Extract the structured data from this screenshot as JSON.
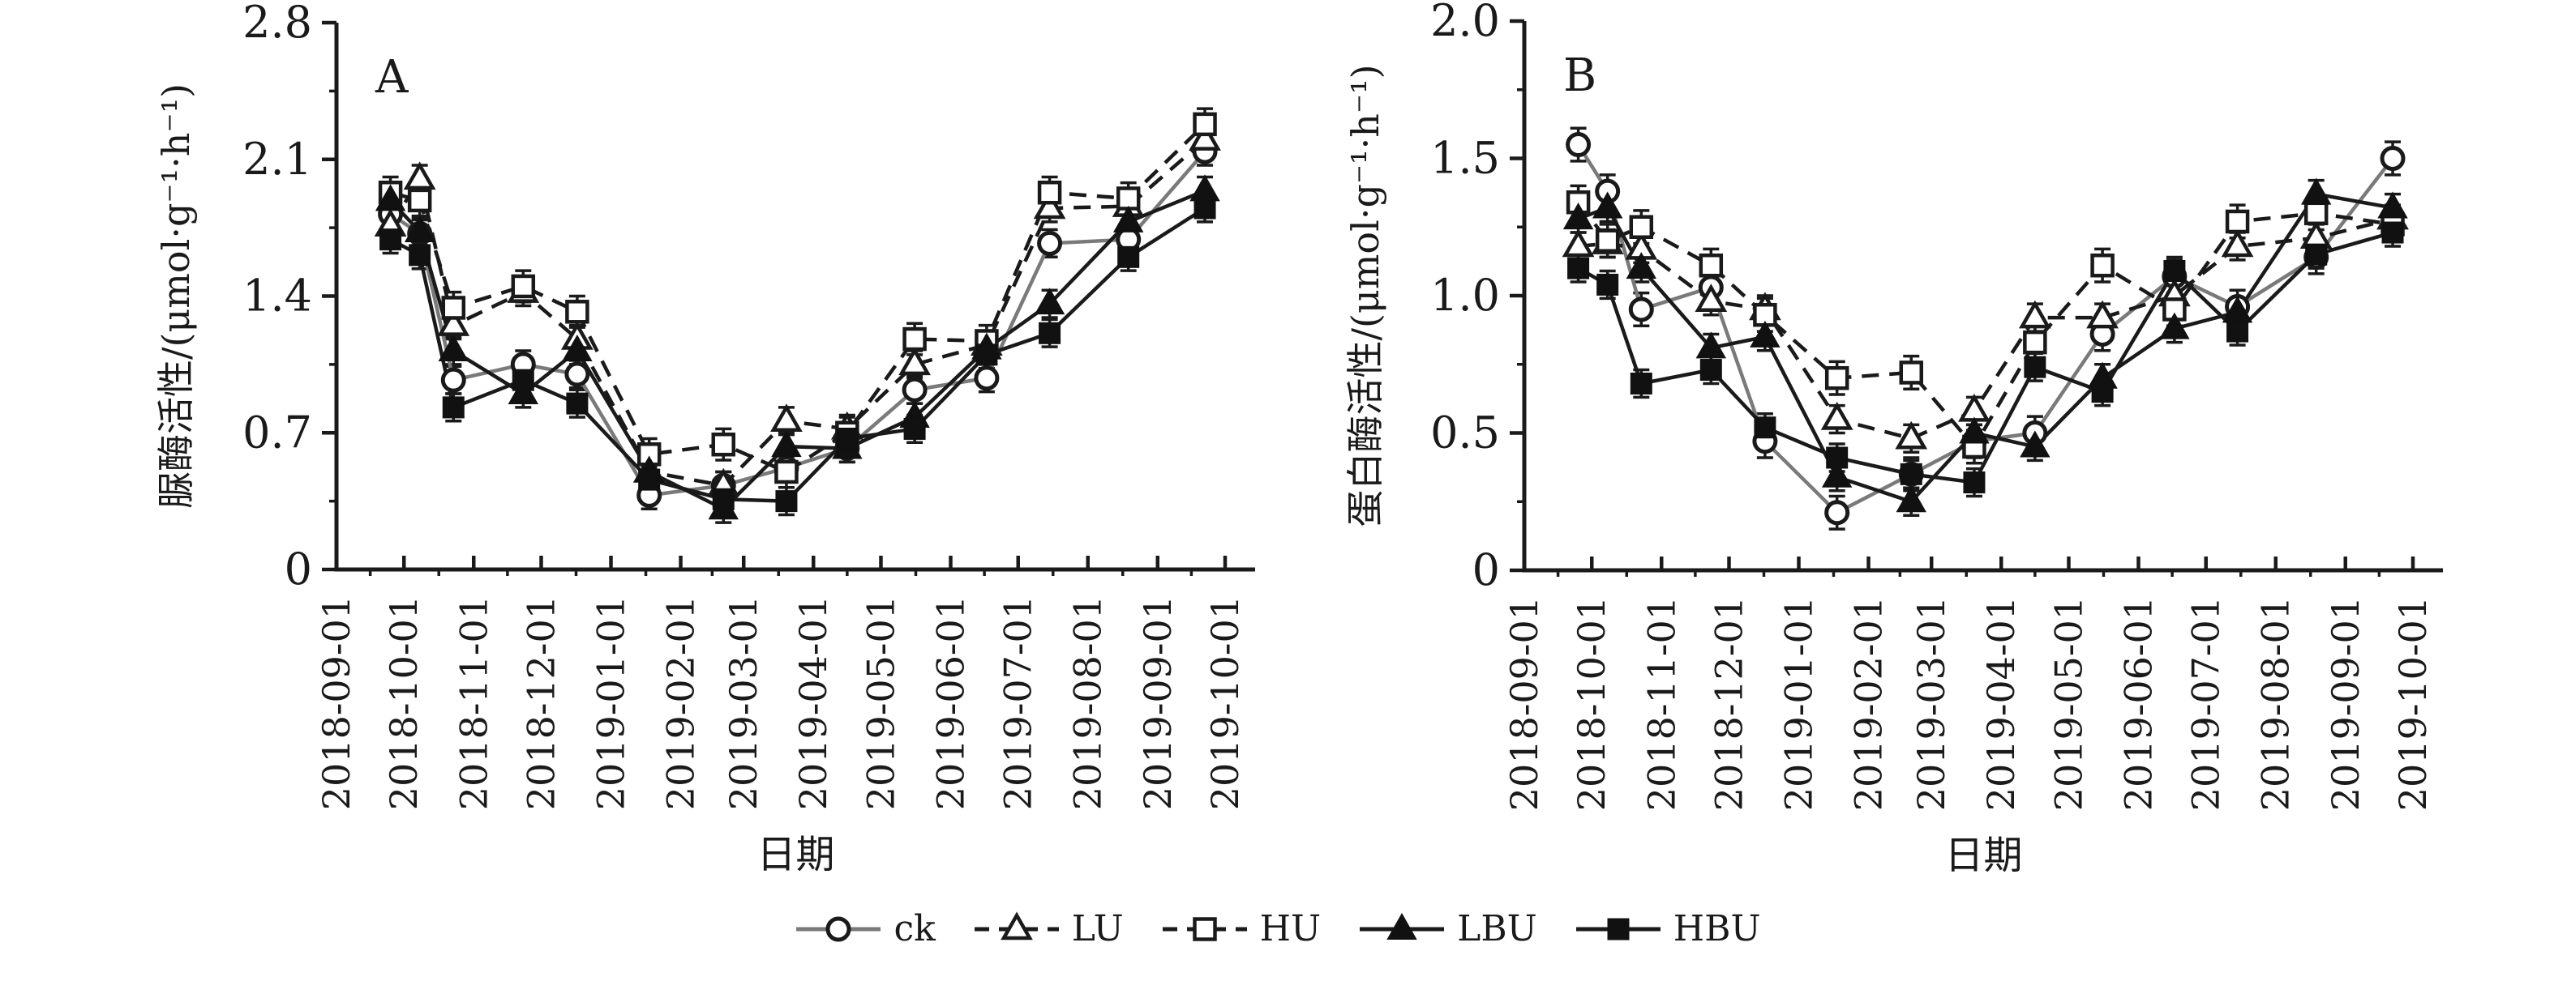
{
  "figure": {
    "background": "#ffffff",
    "axis_color": "#1a1a1a",
    "open_marker_fill": "#ffffff",
    "filled_marker_fill": "#111111"
  },
  "legend": {
    "items": [
      {
        "name": "ck",
        "label": "ck"
      },
      {
        "name": "LU",
        "label": "LU"
      },
      {
        "name": "HU",
        "label": "HU"
      },
      {
        "name": "LBU",
        "label": "LBU"
      },
      {
        "name": "HBU",
        "label": "HBU"
      }
    ]
  },
  "chart_data": [
    {
      "type": "line",
      "panel_label": "A",
      "ylabel": "脲酶活性/(μmol·g⁻¹·h⁻¹)",
      "xlabel": "日期",
      "ylim": [
        0,
        2.8
      ],
      "yticks": [
        {
          "value": 0,
          "label": "0"
        },
        {
          "value": 0.7,
          "label": "0.7"
        },
        {
          "value": 1.4,
          "label": "1.4"
        },
        {
          "value": 2.1,
          "label": "2.1"
        },
        {
          "value": 2.8,
          "label": "2.8"
        }
      ],
      "y_minor_ticks": [
        0.35,
        1.05,
        1.75,
        2.45
      ],
      "x_tick_labels": [
        "2018-09-01",
        "2018-10-01",
        "2018-11-01",
        "2018-12-01",
        "2019-01-01",
        "2019-02-01",
        "2019-03-01",
        "2019-04-01",
        "2019-05-01",
        "2019-06-01",
        "2019-07-01",
        "2019-08-01",
        "2019-09-01",
        "2019-10-01"
      ],
      "x_tick_days": [
        0,
        30,
        61,
        91,
        122,
        153,
        181,
        212,
        242,
        273,
        303,
        334,
        365,
        395
      ],
      "sample_days": [
        24,
        37,
        52,
        83,
        107,
        139,
        172,
        200,
        227,
        257,
        289,
        317,
        352,
        386
      ],
      "sample_dates_estimated": [
        "2018-09-25",
        "2018-10-08",
        "2018-10-23",
        "2018-11-23",
        "2018-12-17",
        "2019-01-18",
        "2019-02-21",
        "2019-03-21",
        "2019-04-16",
        "2019-05-16",
        "2019-06-17",
        "2019-07-15",
        "2019-08-22",
        "2019-09-22"
      ],
      "series": [
        {
          "name": "ck",
          "color": "#7a7a7a",
          "line": "solid",
          "marker": "circle-open",
          "err": 0.07,
          "values": [
            1.82,
            1.72,
            0.97,
            1.05,
            1.0,
            0.38,
            0.43,
            0.52,
            0.62,
            0.92,
            0.98,
            1.67,
            1.69,
            2.14
          ]
        },
        {
          "name": "LU",
          "color": "#1a1a1a",
          "line": "dashed",
          "marker": "triangle-open",
          "err": 0.07,
          "values": [
            1.76,
            2.0,
            1.25,
            1.42,
            1.18,
            0.5,
            0.43,
            0.76,
            0.72,
            1.05,
            1.15,
            1.85,
            1.86,
            2.2
          ]
        },
        {
          "name": "HU",
          "color": "#1a1a1a",
          "line": "dashed",
          "marker": "square-open",
          "err": 0.08,
          "values": [
            1.93,
            1.89,
            1.34,
            1.45,
            1.32,
            0.59,
            0.64,
            0.5,
            0.7,
            1.18,
            1.17,
            1.93,
            1.9,
            2.28
          ]
        },
        {
          "name": "LBU",
          "color": "#1a1a1a",
          "line": "solid",
          "marker": "triangle-filled",
          "err": 0.07,
          "values": [
            1.89,
            1.73,
            1.12,
            0.9,
            1.12,
            0.5,
            0.31,
            0.63,
            0.62,
            0.78,
            1.13,
            1.36,
            1.78,
            1.94
          ]
        },
        {
          "name": "HBU",
          "color": "#1a1a1a",
          "line": "solid",
          "marker": "square-filled",
          "err": 0.07,
          "values": [
            1.69,
            1.61,
            0.83,
            0.97,
            0.85,
            0.46,
            0.36,
            0.35,
            0.67,
            0.72,
            1.1,
            1.21,
            1.6,
            1.85
          ]
        }
      ]
    },
    {
      "type": "line",
      "panel_label": "B",
      "ylabel": "蛋白酶活性/(μmol·g⁻¹·h⁻¹)",
      "xlabel": "日期",
      "ylim": [
        0,
        2.0
      ],
      "yticks": [
        {
          "value": 0,
          "label": "0"
        },
        {
          "value": 0.5,
          "label": "0.5"
        },
        {
          "value": 1.0,
          "label": "1.0"
        },
        {
          "value": 1.5,
          "label": "1.5"
        },
        {
          "value": 2.0,
          "label": "2.0"
        }
      ],
      "y_minor_ticks": [
        0.25,
        0.75,
        1.25,
        1.75
      ],
      "x_tick_labels": [
        "2018-09-01",
        "2018-10-01",
        "2018-11-01",
        "2018-12-01",
        "2019-01-01",
        "2019-02-01",
        "2019-03-01",
        "2019-04-01",
        "2019-05-01",
        "2019-06-01",
        "2019-07-01",
        "2019-08-01",
        "2019-09-01",
        "2019-10-01"
      ],
      "x_tick_days": [
        0,
        30,
        61,
        91,
        122,
        153,
        181,
        212,
        242,
        273,
        303,
        334,
        365,
        395
      ],
      "sample_days": [
        24,
        37,
        52,
        83,
        107,
        139,
        172,
        200,
        227,
        257,
        289,
        317,
        352,
        386
      ],
      "sample_dates_estimated": [
        "2018-09-25",
        "2018-10-08",
        "2018-10-23",
        "2018-11-23",
        "2018-12-17",
        "2019-01-18",
        "2019-02-21",
        "2019-03-21",
        "2019-04-16",
        "2019-05-16",
        "2019-06-17",
        "2019-07-15",
        "2019-08-22",
        "2019-09-22"
      ],
      "series": [
        {
          "name": "ck",
          "color": "#7a7a7a",
          "line": "solid",
          "marker": "circle-open",
          "err": 0.06,
          "values": [
            1.55,
            1.38,
            0.95,
            1.03,
            0.47,
            0.21,
            0.35,
            0.47,
            0.5,
            0.86,
            1.07,
            0.96,
            1.14,
            1.5
          ]
        },
        {
          "name": "LU",
          "color": "#1a1a1a",
          "line": "dashed",
          "marker": "triangle-open",
          "err": 0.05,
          "values": [
            1.18,
            1.19,
            1.17,
            0.98,
            0.95,
            0.55,
            0.48,
            0.58,
            0.92,
            0.92,
            1.0,
            1.18,
            1.21,
            1.28
          ]
        },
        {
          "name": "HU",
          "color": "#1a1a1a",
          "line": "dashed",
          "marker": "square-open",
          "err": 0.06,
          "values": [
            1.34,
            1.2,
            1.25,
            1.11,
            0.93,
            0.7,
            0.72,
            0.45,
            0.83,
            1.11,
            0.95,
            1.27,
            1.3,
            1.26
          ]
        },
        {
          "name": "LBU",
          "color": "#1a1a1a",
          "line": "solid",
          "marker": "triangle-filled",
          "err": 0.05,
          "values": [
            1.28,
            1.32,
            1.1,
            0.81,
            0.85,
            0.34,
            0.25,
            0.5,
            0.45,
            0.7,
            0.88,
            0.94,
            1.37,
            1.32
          ]
        },
        {
          "name": "HBU",
          "color": "#1a1a1a",
          "line": "solid",
          "marker": "square-filled",
          "err": 0.05,
          "values": [
            1.1,
            1.04,
            0.68,
            0.73,
            0.52,
            0.41,
            0.35,
            0.32,
            0.74,
            0.65,
            1.09,
            0.87,
            1.15,
            1.23
          ]
        }
      ]
    }
  ]
}
